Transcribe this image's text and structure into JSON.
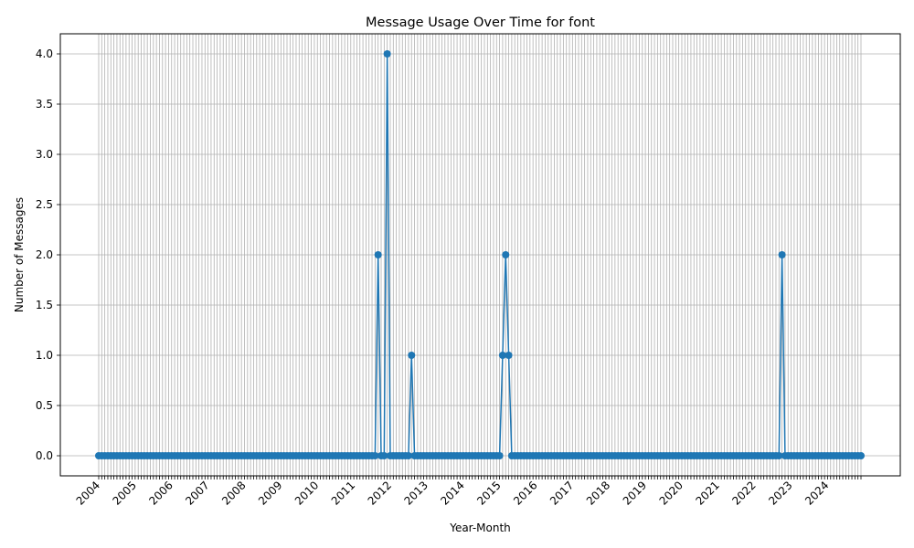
{
  "chart_data": {
    "type": "line",
    "title": "Message Usage Over Time for font",
    "xlabel": "Year-Month",
    "ylabel": "Number of Messages",
    "x_start": "2004-01",
    "x_end": "2024-12",
    "x_tick_labels": [
      "2004",
      "2005",
      "2006",
      "2007",
      "2008",
      "2009",
      "2010",
      "2011",
      "2012",
      "2013",
      "2014",
      "2015",
      "2016",
      "2017",
      "2018",
      "2019",
      "2020",
      "2021",
      "2022",
      "2023",
      "2024"
    ],
    "y_ticks": [
      "0.0",
      "0.5",
      "1.0",
      "1.5",
      "2.0",
      "2.5",
      "3.0",
      "3.5",
      "4.0"
    ],
    "ylim": [
      -0.2,
      4.2
    ],
    "grid": true,
    "marker": "circle",
    "series_color": "#1f77b4",
    "nonzero_points": [
      {
        "x": "2011-09",
        "y": 2
      },
      {
        "x": "2011-12",
        "y": 4
      },
      {
        "x": "2012-08",
        "y": 1
      },
      {
        "x": "2015-02",
        "y": 1
      },
      {
        "x": "2015-03",
        "y": 2
      },
      {
        "x": "2015-04",
        "y": 1
      },
      {
        "x": "2022-10",
        "y": 2
      }
    ],
    "default_value": 0
  }
}
